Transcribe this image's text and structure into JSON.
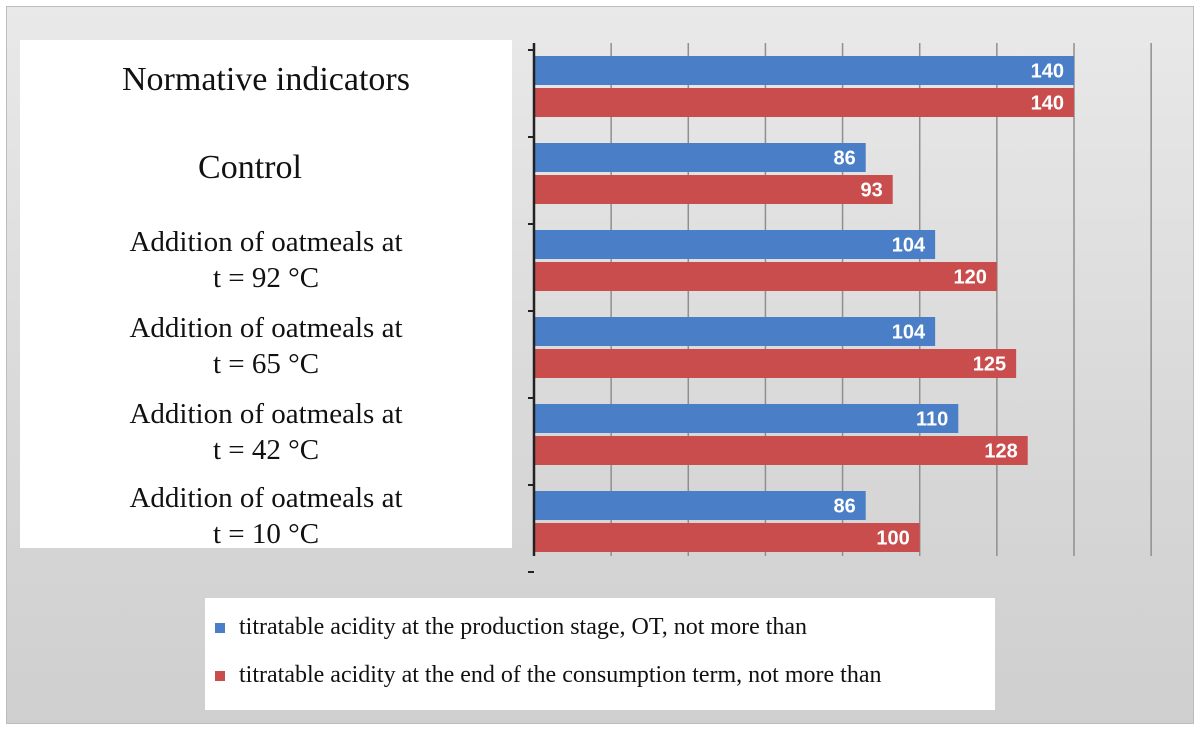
{
  "chart_data": {
    "type": "bar",
    "orientation": "horizontal",
    "categories": [
      [
        "Normative indicators"
      ],
      [
        "Control"
      ],
      [
        "Addition of oatmeals at",
        "t = 92 °C"
      ],
      [
        "Addition of oatmeals at",
        "t = 65 °C"
      ],
      [
        "Addition of oatmeals at",
        "t = 42 °C"
      ],
      [
        "Addition of oatmeals at",
        "t = 10 °C"
      ]
    ],
    "series": [
      {
        "name": "titratable acidity at the production stage, OT, not more than",
        "color": "#4a7ec6",
        "values": [
          140,
          86,
          104,
          104,
          110,
          86
        ]
      },
      {
        "name": "titratable acidity at the end of the consumption term, not more than",
        "color": "#c94d4d",
        "values": [
          140,
          93,
          120,
          125,
          128,
          100
        ]
      }
    ],
    "xlim": [
      0,
      160
    ],
    "grid_step": 20,
    "grid": true,
    "legend_position": "bottom"
  }
}
